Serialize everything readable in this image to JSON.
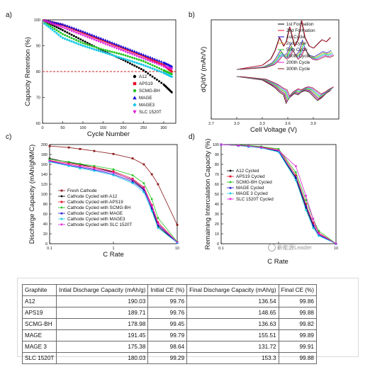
{
  "panel_labels": {
    "a": "a)",
    "b": "b)",
    "c": "c)",
    "d": "d)"
  },
  "colors": {
    "A12": "#000000",
    "APS19": "#e8112d",
    "SCMG-BH": "#22c41e",
    "MAGE": "#1a0fd8",
    "MAGE3": "#16c8e8",
    "SLC1520T": "#e01ed6",
    "fresh": "#8b1a1a",
    "refline": "#cc2222"
  },
  "chart_data": [
    {
      "type": "scatter",
      "panel": "a",
      "xlabel": "Cycle Number",
      "ylabel": "Capacity Retention (%)",
      "xlim": [
        0,
        330
      ],
      "ylim": [
        60,
        100
      ],
      "xticks": [
        "0",
        "50",
        "100",
        "150",
        "200",
        "250",
        "300"
      ],
      "yticks": [
        "60",
        "70",
        "80",
        "90",
        "100"
      ],
      "reference_line": {
        "y": 80,
        "style": "dashed"
      },
      "legend_position": "bottom-right",
      "series": [
        {
          "name": "A12",
          "marker": "circle",
          "x": [
            5,
            50,
            100,
            150,
            200,
            250,
            300,
            320
          ],
          "y": [
            99.5,
            96,
            92,
            88,
            84.5,
            80.5,
            75,
            72
          ]
        },
        {
          "name": "APS19",
          "marker": "square",
          "x": [
            5,
            50,
            100,
            150,
            200,
            250,
            300,
            320
          ],
          "y": [
            99.8,
            98,
            95,
            92,
            89,
            86,
            82.5,
            80
          ]
        },
        {
          "name": "SCMG-BH",
          "marker": "circle",
          "x": [
            5,
            50,
            100,
            150,
            200,
            250,
            300,
            320
          ],
          "y": [
            99,
            94.5,
            91,
            88.5,
            86.5,
            84,
            80.5,
            79
          ]
        },
        {
          "name": "MAGE",
          "marker": "triangle",
          "x": [
            5,
            50,
            100,
            150,
            200,
            250,
            300,
            320
          ],
          "y": [
            99.8,
            98.3,
            95.5,
            92.5,
            89.5,
            86.5,
            83.5,
            82
          ]
        },
        {
          "name": "MAGE3",
          "marker": "diamond",
          "x": [
            5,
            50,
            100,
            150,
            200,
            250,
            300,
            320
          ],
          "y": [
            98.5,
            93,
            90,
            87.5,
            85,
            82.5,
            79.5,
            78
          ]
        },
        {
          "name": "SLC 1520T",
          "marker": "triangle-down",
          "x": [
            5,
            50,
            100,
            150,
            200,
            250,
            300,
            320
          ],
          "y": [
            99.5,
            97,
            94,
            91,
            88,
            85,
            82,
            81
          ]
        }
      ]
    },
    {
      "type": "line",
      "panel": "b",
      "xlabel": "Cell Voltage (V)",
      "ylabel": "dQ/dV (mAh/V)",
      "xlim": [
        2.7,
        4.2
      ],
      "xticks": [
        "2.7",
        "3.0",
        "3.3",
        "3.6",
        "3.9"
      ],
      "legend_position": "top-right",
      "legend": [
        "1st Formation",
        "2nd Formation",
        "1st Cycle",
        "2nd Cycle",
        "50th Cycle",
        "100th Cycle",
        "200th Cycle",
        "300th Cycle"
      ],
      "legend_colors": [
        "#000000",
        "#e8112d",
        "#1a0fd8",
        "#d8a020",
        "#22c41e",
        "#16c8e8",
        "#e01ed6",
        "#8b1a1a"
      ]
    },
    {
      "type": "line",
      "panel": "c",
      "xlabel": "C Rate",
      "ylabel": "Discharge Capacity (mAh/gNMC)",
      "xscale": "log",
      "xlim": [
        0.1,
        10
      ],
      "ylim": [
        0,
        200
      ],
      "xticks": [
        "0.1",
        "1",
        "10"
      ],
      "yticks": [
        "0",
        "20",
        "40",
        "60",
        "80",
        "100",
        "120",
        "140",
        "160",
        "180",
        "200"
      ],
      "legend_position": "bottom-left",
      "x": [
        0.1,
        0.2,
        0.3,
        0.5,
        1,
        2,
        3,
        4,
        5,
        10
      ],
      "series": [
        {
          "name": "Fresh Cathode",
          "y": [
            197,
            194,
            191,
            187,
            181,
            172,
            160,
            140,
            120,
            38
          ]
        },
        {
          "name": "Cathode Cycled with A12",
          "y": [
            172,
            164,
            160,
            154,
            144,
            128,
            110,
            70,
            35,
            2
          ]
        },
        {
          "name": "Cathode Cycled with APS19",
          "y": [
            168,
            162,
            158,
            154,
            146,
            131,
            114,
            78,
            43,
            3
          ]
        },
        {
          "name": "Cathode Cycled with SCMG-BH",
          "y": [
            170,
            165,
            161,
            157,
            150,
            138,
            122,
            90,
            52,
            4
          ]
        },
        {
          "name": "Cathode Cycled with MAGE",
          "y": [
            166,
            158,
            154,
            149,
            140,
            125,
            108,
            72,
            38,
            2
          ]
        },
        {
          "name": "Cathode Cycled with MAGE3",
          "y": [
            165,
            157,
            152,
            147,
            138,
            122,
            104,
            66,
            32,
            2
          ]
        },
        {
          "name": "Cathode Cycled with SLC 1520T",
          "y": [
            167,
            160,
            156,
            151,
            143,
            129,
            112,
            76,
            40,
            3
          ]
        }
      ]
    },
    {
      "type": "line",
      "panel": "d",
      "xlabel": "C Rate",
      "ylabel": "Remaining Intercalation Capacity (%)",
      "xscale": "log",
      "xlim": [
        0.1,
        10
      ],
      "ylim": [
        0,
        100
      ],
      "xticks": [
        "0.1",
        "1",
        "10"
      ],
      "yticks": [
        "0",
        "10",
        "20",
        "30",
        "40",
        "50",
        "60",
        "70",
        "80",
        "90",
        "100"
      ],
      "legend_position": "middle-left",
      "x": [
        0.1,
        0.2,
        0.3,
        0.5,
        1,
        2,
        3,
        4,
        5,
        10
      ],
      "series": [
        {
          "name": "A12 Cycled",
          "y": [
            100,
            99,
            98,
            97,
            93,
            66,
            36,
            18,
            9,
            0
          ]
        },
        {
          "name": "APS19 Cycled",
          "y": [
            100,
            99,
            98.5,
            97.5,
            95,
            69,
            40,
            21,
            11,
            0
          ]
        },
        {
          "name": "SCMG-BH Cycled",
          "y": [
            100,
            99.5,
            99,
            98,
            95.5,
            72,
            44,
            25,
            13,
            0
          ]
        },
        {
          "name": "MAGE Cycled",
          "y": [
            100,
            99,
            98,
            97,
            93.5,
            67,
            38,
            19,
            9,
            0
          ]
        },
        {
          "name": "MAGE 3 Cycled",
          "y": [
            100,
            99,
            98,
            96.5,
            92.5,
            64,
            34,
            16,
            8,
            0
          ]
        },
        {
          "name": "SLC 1520T Cycled",
          "y": [
            100,
            99,
            98.5,
            97,
            94,
            78,
            48,
            25,
            10,
            0
          ]
        }
      ]
    },
    {
      "type": "table",
      "headers": [
        "Graphite",
        "Intial Discharge Capacity (mAh/g)",
        "Initial CE (%)",
        "Final Discharge Capacity (mAh/g)",
        "Final CE (%)"
      ],
      "rows": [
        [
          "A12",
          "190.03",
          "99.76",
          "136.54",
          "99.86"
        ],
        [
          "APS19",
          "189.71",
          "99.76",
          "148.65",
          "99.88"
        ],
        [
          "SCMG-BH",
          "178.98",
          "99.45",
          "136.63",
          "99.82"
        ],
        [
          "MAGE",
          "191.45",
          "99.79",
          "155.51",
          "99.89"
        ],
        [
          "MAGE 3",
          "175.38",
          "98.64",
          "131.72",
          "99.91"
        ],
        [
          "SLC 1520T",
          "180.03",
          "99.29",
          "153.3",
          "99.88"
        ]
      ]
    }
  ],
  "watermark": "新能源Leader"
}
